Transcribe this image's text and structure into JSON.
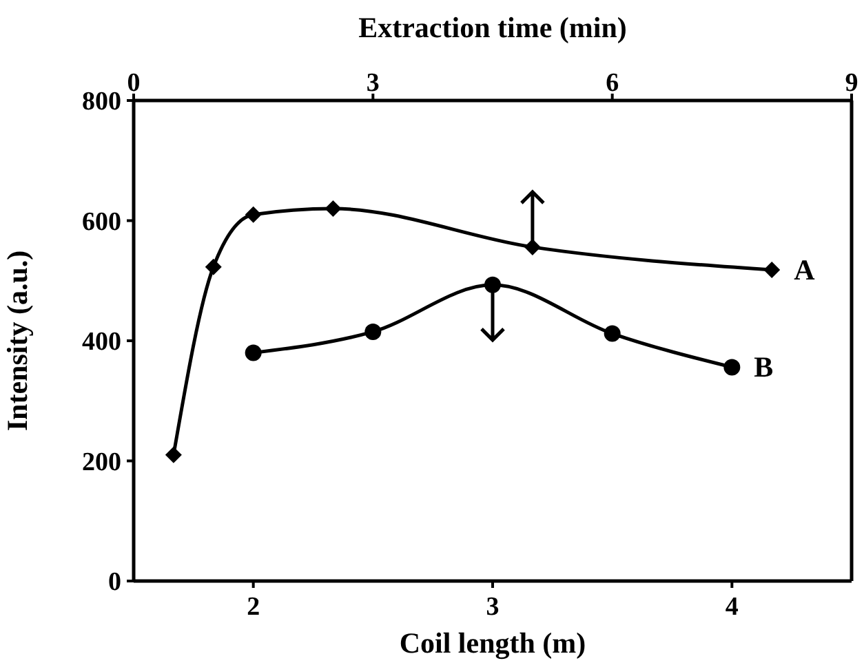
{
  "chart_data": {
    "type": "line",
    "xlabel": "Coil length (m)",
    "x2label": "Extraction time (min)",
    "ylabel": "Intensity (a.u.)",
    "xlim": [
      1.5,
      4.5
    ],
    "xticks": [
      2,
      3,
      4
    ],
    "x2lim": [
      0,
      9
    ],
    "x2ticks": [
      0,
      3,
      6,
      9
    ],
    "ylim": [
      0,
      800
    ],
    "yticks": [
      0,
      200,
      400,
      600,
      800
    ],
    "legend": false,
    "series": [
      {
        "name": "A",
        "color": "#000000",
        "axis": "x2",
        "marker": "diamond",
        "x": [
          0.5,
          1,
          1.5,
          2.5,
          5,
          8
        ],
        "values": [
          210,
          523,
          610,
          620,
          556,
          518
        ]
      },
      {
        "name": "B",
        "color": "#000000",
        "marker": "circle",
        "x": [
          2,
          2.5,
          3,
          3.5,
          4
        ],
        "values": [
          380,
          415,
          493,
          412,
          356
        ]
      }
    ]
  }
}
